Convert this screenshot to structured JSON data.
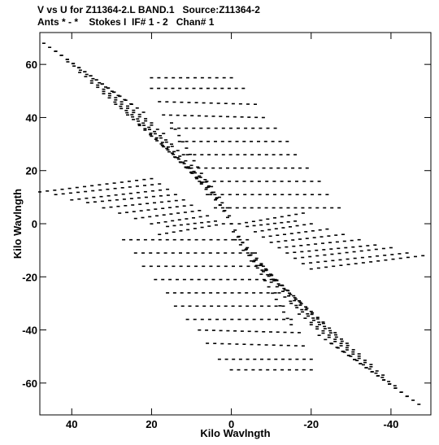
{
  "header": {
    "line1": "V vs U for Z11364-2.L BAND.1   Source:Z11364-2",
    "line2": "Ants * - *    Stokes I  IF# 1 - 2   Chan# 1"
  },
  "colors": {
    "background": "#ffffff",
    "points": "#000000",
    "frame": "#000000"
  },
  "chart_data": {
    "type": "scatter",
    "xlabel": "Kilo Wavlngth",
    "ylabel": "Kilo Wavlngth",
    "xlim": [
      48,
      -50
    ],
    "ylim": [
      -72,
      72
    ],
    "grid": false,
    "x_ticks": [
      40,
      20,
      0,
      -20,
      -40
    ],
    "y_ticks": [
      60,
      40,
      20,
      0,
      -20,
      -40,
      -60
    ],
    "x_tick_labels": [
      "40",
      "20",
      "0",
      "-20",
      "-40"
    ],
    "y_tick_labels": [
      "60",
      "40",
      "20",
      "0",
      "-20",
      "-40",
      "-60"
    ],
    "tracks": [
      {
        "u": [
          47.0,
          28.0
        ],
        "v": [
          68.0,
          48.0
        ]
      },
      {
        "u": [
          44.0,
          25.0
        ],
        "v": [
          65.0,
          45.0
        ]
      },
      {
        "u": [
          41.0,
          22.0
        ],
        "v": [
          61.0,
          42.0
        ]
      },
      {
        "u": [
          38.0,
          20.0
        ],
        "v": [
          57.0,
          38.0
        ]
      },
      {
        "u": [
          35.0,
          17.0
        ],
        "v": [
          53.0,
          34.0
        ]
      },
      {
        "u": [
          32.0,
          15.0
        ],
        "v": [
          49.0,
          30.0
        ]
      },
      {
        "u": [
          29.0,
          12.0
        ],
        "v": [
          45.0,
          26.0
        ]
      },
      {
        "u": [
          26.0,
          10.0
        ],
        "v": [
          41.0,
          22.0
        ]
      },
      {
        "u": [
          23.0,
          8.0
        ],
        "v": [
          37.0,
          18.0
        ]
      },
      {
        "u": [
          20.0,
          5.0
        ],
        "v": [
          33.0,
          14.0
        ]
      },
      {
        "u": [
          17.0,
          3.0
        ],
        "v": [
          29.0,
          10.0
        ]
      },
      {
        "u": [
          14.0,
          1.0
        ],
        "v": [
          25.0,
          6.0
        ]
      },
      {
        "u": [
          11.0,
          0.5
        ],
        "v": [
          21.0,
          3.0
        ]
      },
      {
        "u": [
          20.0,
          0.0
        ],
        "v": [
          55.0,
          55.0
        ]
      },
      {
        "u": [
          20.0,
          -3.0
        ],
        "v": [
          51.0,
          51.0
        ]
      },
      {
        "u": [
          18.0,
          -6.0
        ],
        "v": [
          46.0,
          45.0
        ]
      },
      {
        "u": [
          17.0,
          -8.0
        ],
        "v": [
          41.0,
          40.0
        ]
      },
      {
        "u": [
          15.0,
          -11.0
        ],
        "v": [
          36.0,
          36.0
        ]
      },
      {
        "u": [
          13.0,
          -14.0
        ],
        "v": [
          31.0,
          31.0
        ]
      },
      {
        "u": [
          11.0,
          -16.0
        ],
        "v": [
          26.0,
          26.0
        ]
      },
      {
        "u": [
          10.0,
          -19.0
        ],
        "v": [
          21.0,
          21.0
        ]
      },
      {
        "u": [
          8.0,
          -22.0
        ],
        "v": [
          16.0,
          16.0
        ]
      },
      {
        "u": [
          6.0,
          -24.0
        ],
        "v": [
          11.0,
          11.0
        ]
      },
      {
        "u": [
          4.0,
          -27.0
        ],
        "v": [
          6.0,
          6.0
        ]
      },
      {
        "u": [
          48.0,
          20.0
        ],
        "v": [
          12.0,
          17.0
        ]
      },
      {
        "u": [
          44.0,
          18.0
        ],
        "v": [
          11.0,
          15.0
        ]
      },
      {
        "u": [
          40.0,
          16.0
        ],
        "v": [
          9.0,
          13.0
        ]
      },
      {
        "u": [
          36.0,
          14.0
        ],
        "v": [
          8.0,
          11.0
        ]
      },
      {
        "u": [
          32.0,
          12.0
        ],
        "v": [
          6.0,
          9.0
        ]
      },
      {
        "u": [
          28.0,
          10.0
        ],
        "v": [
          4.0,
          7.0
        ]
      },
      {
        "u": [
          24.0,
          8.0
        ],
        "v": [
          2.0,
          5.0
        ]
      },
      {
        "u": [
          20.0,
          6.0
        ],
        "v": [
          0.0,
          3.0
        ]
      },
      {
        "u": [
          16.0,
          4.0
        ],
        "v": [
          -1.0,
          1.0
        ]
      },
      {
        "u": [
          18.0,
          2.0
        ],
        "v": [
          -4.0,
          0.0
        ]
      },
      {
        "u": [
          -47.0,
          -28.0
        ],
        "v": [
          -68.0,
          -48.0
        ]
      },
      {
        "u": [
          -44.0,
          -25.0
        ],
        "v": [
          -65.0,
          -45.0
        ]
      },
      {
        "u": [
          -41.0,
          -22.0
        ],
        "v": [
          -61.0,
          -42.0
        ]
      },
      {
        "u": [
          -38.0,
          -20.0
        ],
        "v": [
          -57.0,
          -38.0
        ]
      },
      {
        "u": [
          -35.0,
          -17.0
        ],
        "v": [
          -53.0,
          -34.0
        ]
      },
      {
        "u": [
          -32.0,
          -15.0
        ],
        "v": [
          -49.0,
          -30.0
        ]
      },
      {
        "u": [
          -29.0,
          -12.0
        ],
        "v": [
          -45.0,
          -26.0
        ]
      },
      {
        "u": [
          -26.0,
          -10.0
        ],
        "v": [
          -41.0,
          -22.0
        ]
      },
      {
        "u": [
          -23.0,
          -8.0
        ],
        "v": [
          -37.0,
          -18.0
        ]
      },
      {
        "u": [
          -20.0,
          -5.0
        ],
        "v": [
          -33.0,
          -14.0
        ]
      },
      {
        "u": [
          -17.0,
          -3.0
        ],
        "v": [
          -29.0,
          -10.0
        ]
      },
      {
        "u": [
          -14.0,
          -1.0
        ],
        "v": [
          -25.0,
          -6.0
        ]
      },
      {
        "u": [
          -11.0,
          -0.5
        ],
        "v": [
          -21.0,
          -3.0
        ]
      },
      {
        "u": [
          -20.0,
          0.0
        ],
        "v": [
          -55.0,
          -55.0
        ]
      },
      {
        "u": [
          -20.0,
          3.0
        ],
        "v": [
          -51.0,
          -51.0
        ]
      },
      {
        "u": [
          -18.0,
          6.0
        ],
        "v": [
          -46.0,
          -45.0
        ]
      },
      {
        "u": [
          -17.0,
          8.0
        ],
        "v": [
          -41.0,
          -40.0
        ]
      },
      {
        "u": [
          -15.0,
          11.0
        ],
        "v": [
          -36.0,
          -36.0
        ]
      },
      {
        "u": [
          -13.0,
          14.0
        ],
        "v": [
          -31.0,
          -31.0
        ]
      },
      {
        "u": [
          -11.0,
          16.0
        ],
        "v": [
          -26.0,
          -26.0
        ]
      },
      {
        "u": [
          -10.0,
          19.0
        ],
        "v": [
          -21.0,
          -21.0
        ]
      },
      {
        "u": [
          -8.0,
          22.0
        ],
        "v": [
          -16.0,
          -16.0
        ]
      },
      {
        "u": [
          -6.0,
          24.0
        ],
        "v": [
          -11.0,
          -11.0
        ]
      },
      {
        "u": [
          -4.0,
          27.0
        ],
        "v": [
          -6.0,
          -6.0
        ]
      },
      {
        "u": [
          -48.0,
          -20.0
        ],
        "v": [
          -12.0,
          -17.0
        ]
      },
      {
        "u": [
          -44.0,
          -18.0
        ],
        "v": [
          -11.0,
          -15.0
        ]
      },
      {
        "u": [
          -40.0,
          -16.0
        ],
        "v": [
          -9.0,
          -13.0
        ]
      },
      {
        "u": [
          -36.0,
          -14.0
        ],
        "v": [
          -8.0,
          -11.0
        ]
      },
      {
        "u": [
          -32.0,
          -12.0
        ],
        "v": [
          -6.0,
          -9.0
        ]
      },
      {
        "u": [
          -28.0,
          -10.0
        ],
        "v": [
          -4.0,
          -7.0
        ]
      },
      {
        "u": [
          -24.0,
          -8.0
        ],
        "v": [
          -2.0,
          -5.0
        ]
      },
      {
        "u": [
          -20.0,
          -6.0
        ],
        "v": [
          0.0,
          -3.0
        ]
      },
      {
        "u": [
          -16.0,
          -4.0
        ],
        "v": [
          1.0,
          -1.0
        ]
      },
      {
        "u": [
          -18.0,
          -2.0
        ],
        "v": [
          4.0,
          0.0
        ]
      },
      {
        "u": [
          15.0,
          0.0
        ],
        "v": [
          38.0,
          0.0
        ]
      },
      {
        "u": [
          -15.0,
          0.0
        ],
        "v": [
          -38.0,
          0.0
        ]
      }
    ]
  }
}
